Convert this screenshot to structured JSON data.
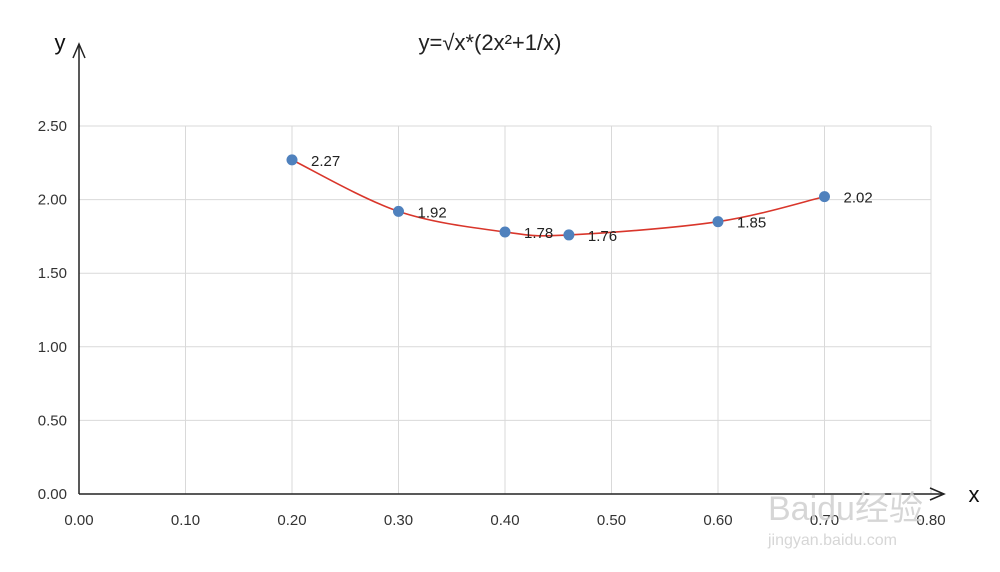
{
  "chart_data": {
    "type": "scatter",
    "title": "y=√x*(2x²+1/x)",
    "xlabel": "x",
    "ylabel": "y",
    "xlim": [
      0,
      0.8
    ],
    "ylim": [
      0,
      2.5
    ],
    "grid": true,
    "x_ticks": [
      "0.00",
      "0.10",
      "0.20",
      "0.30",
      "0.40",
      "0.50",
      "0.60",
      "0.70",
      "0.80"
    ],
    "y_ticks": [
      "0.00",
      "0.50",
      "1.00",
      "1.50",
      "2.00",
      "2.50"
    ],
    "series": [
      {
        "x": [
          0.2,
          0.3,
          0.4,
          0.46,
          0.6,
          0.7
        ],
        "y": [
          2.27,
          1.92,
          1.78,
          1.76,
          1.85,
          2.02
        ],
        "labels": [
          "2.27",
          "1.92",
          "1.78",
          "1.76",
          "1.85",
          "2.02"
        ],
        "line_color": "#d9362b",
        "marker_color": "#4f81bd",
        "smooth": true
      }
    ]
  },
  "watermark": {
    "text": "Baidu经验",
    "url": "jingyan.baidu.com"
  }
}
